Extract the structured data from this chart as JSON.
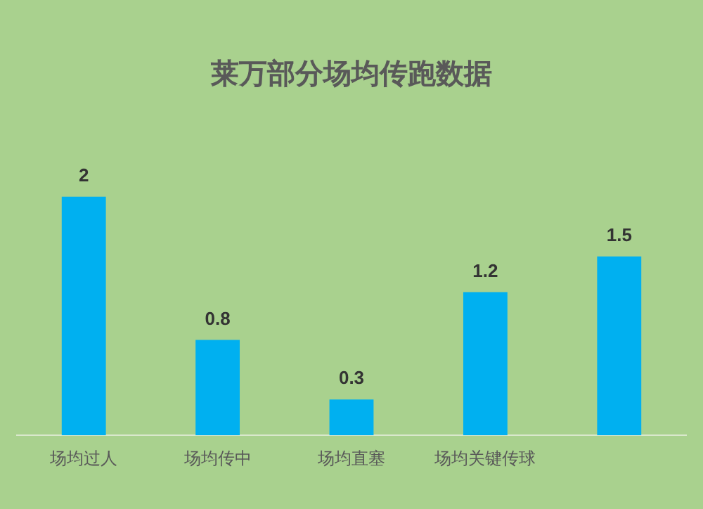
{
  "chart_data": {
    "type": "bar",
    "title": "莱万部分场均传跑数据",
    "categories": [
      "场均过人",
      "场均传中",
      "场均直塞",
      "场均关键传球",
      null
    ],
    "values": [
      2,
      0.8,
      0.3,
      1.2,
      1.5
    ],
    "color": "#00b0f0",
    "data_labels": true,
    "tick_labels": "x",
    "grid": false,
    "legend": false
  }
}
